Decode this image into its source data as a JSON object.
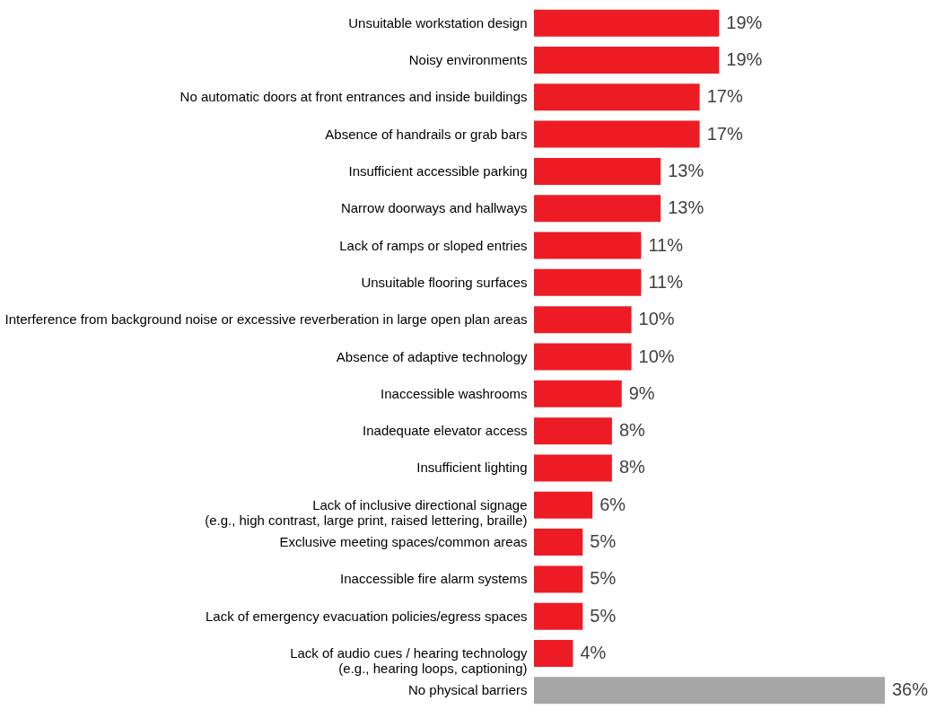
{
  "chart_data": {
    "type": "bar",
    "orientation": "horizontal",
    "categories": [
      "Unsuitable workstation design",
      "Noisy environments",
      "No automatic doors at front entrances and inside buildings",
      "Absence of handrails or grab bars",
      "Insufficient accessible parking",
      "Narrow doorways and hallways",
      "Lack of ramps or sloped entries",
      "Unsuitable flooring surfaces",
      "Interference from background noise or excessive reverberation in large open plan areas",
      "Absence of adaptive technology",
      "Inaccessible washrooms",
      "Inadequate elevator access",
      "Insufficient lighting",
      "Lack of inclusive directional signage\n(e.g., high contrast, large print, raised lettering, braille)",
      "Exclusive meeting spaces/common areas",
      "Inaccessible fire alarm systems",
      "Lack of emergency evacuation policies/egress spaces",
      "Lack of audio cues / hearing technology\n(e.g., hearing loops, captioning)",
      "No physical barriers"
    ],
    "values": [
      19,
      19,
      17,
      17,
      13,
      13,
      11,
      11,
      10,
      10,
      9,
      8,
      8,
      6,
      5,
      5,
      5,
      4,
      36
    ],
    "colors": [
      "#ed1c24",
      "#ed1c24",
      "#ed1c24",
      "#ed1c24",
      "#ed1c24",
      "#ed1c24",
      "#ed1c24",
      "#ed1c24",
      "#ed1c24",
      "#ed1c24",
      "#ed1c24",
      "#ed1c24",
      "#ed1c24",
      "#ed1c24",
      "#ed1c24",
      "#ed1c24",
      "#ed1c24",
      "#ed1c24",
      "#a6a6a6"
    ],
    "value_labels": [
      "19%",
      "19%",
      "17%",
      "17%",
      "13%",
      "13%",
      "11%",
      "11%",
      "10%",
      "10%",
      "9%",
      "8%",
      "8%",
      "6%",
      "5%",
      "5%",
      "5%",
      "4%",
      "36%"
    ],
    "grid": false,
    "tick_labels": "y"
  }
}
